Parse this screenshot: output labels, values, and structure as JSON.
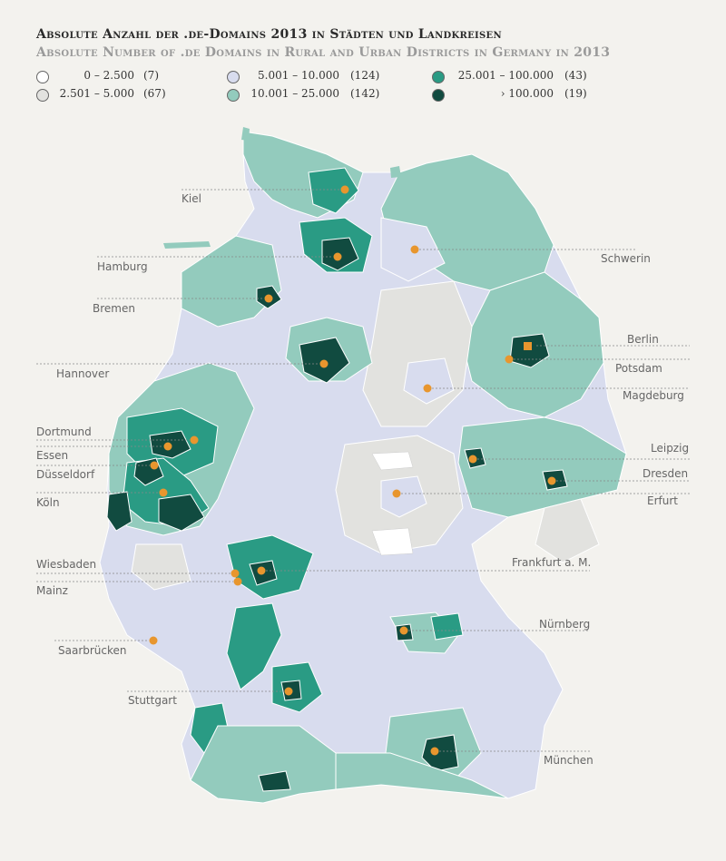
{
  "title": "Absolute Anzahl der .de-Domains 2013 in Städten und Landkreisen",
  "subtitle": "Absolute Number of .de Domains in Rural and Urban Districts in Germany in 2013",
  "legend": [
    {
      "range": "0 – 2.500",
      "count": "(7)",
      "color": "#ffffff"
    },
    {
      "range": "2.501 – 5.000",
      "count": "(67)",
      "color": "#e2e2df"
    },
    {
      "range": "5.001 – 10.000",
      "count": "(124)",
      "color": "#d8dcee"
    },
    {
      "range": "10.001 – 25.000",
      "count": "(142)",
      "color": "#93cbbd"
    },
    {
      "range": "25.001 – 100.000",
      "count": "(43)",
      "color": "#2a9b84"
    },
    {
      "range": "› 100.000",
      "count": "(19)",
      "color": "#114b40"
    }
  ],
  "cities": {
    "kiel": "Kiel",
    "hamburg": "Hamburg",
    "bremen": "Bremen",
    "hannover": "Hannover",
    "dortmund": "Dortmund",
    "essen": "Essen",
    "duesseldorf": "Düsseldorf",
    "koeln": "Köln",
    "wiesbaden": "Wiesbaden",
    "mainz": "Mainz",
    "saarbruecken": "Saarbrücken",
    "stuttgart": "Stuttgart",
    "schwerin": "Schwerin",
    "berlin": "Berlin",
    "potsdam": "Potsdam",
    "magdeburg": "Magdeburg",
    "leipzig": "Leipzig",
    "dresden": "Dresden",
    "erfurt": "Erfurt",
    "frankfurt": "Frankfurt a. M.",
    "nuernberg": "Nürnberg",
    "muenchen": "München"
  },
  "colors": {
    "class_0_2500": "#ffffff",
    "class_2501_5000": "#e2e2df",
    "class_5001_10000": "#d8dcee",
    "class_10001_25000": "#93cbbd",
    "class_25001_100000": "#2a9b84",
    "class_over_100000": "#114b40",
    "capital_marker": "#e8962e"
  }
}
